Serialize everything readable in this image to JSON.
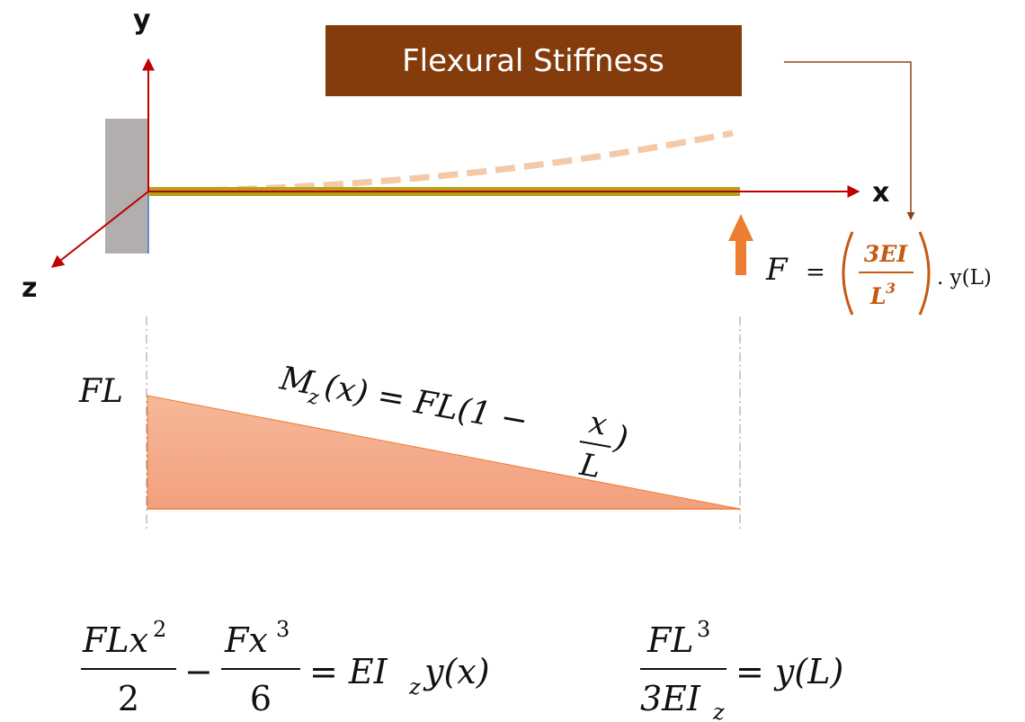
{
  "labels": {
    "y_axis": "y",
    "x_axis": "x",
    "z_axis": "z",
    "banner": "Flexural Stiffness"
  },
  "force_formula": {
    "lhs": "F",
    "eq": "=",
    "numerator": "3EI",
    "denominator_base": "L",
    "denominator_exp": "3",
    "tail": ". y(L)"
  },
  "moment": {
    "fl_label": "FL",
    "expr_start": "M",
    "expr_sub": "z",
    "expr_mid": "(x) = FL(1 −",
    "frac_num": "x",
    "frac_den": "L",
    "expr_end": ")"
  },
  "eq_left": {
    "t1_num": "FLx",
    "t1_num_exp": "2",
    "t1_den": "2",
    "minus": "−",
    "t2_num": "Fx",
    "t2_num_exp": "3",
    "t2_den": "6",
    "rhs_a": "= EI",
    "rhs_sub": "z",
    "rhs_b": "y(x)"
  },
  "eq_right": {
    "num": "FL",
    "num_exp": "3",
    "den": "3EI",
    "den_sub": "z",
    "rhs": "= y(L)"
  },
  "colors": {
    "banner_bg": "#843c0c",
    "axis_red": "#c00000",
    "wall_gray": "#b3aeae",
    "beam_olive": "#b4a21a",
    "deflection_dash": "#f4c9a8",
    "force_arrow": "#ed7d31",
    "moment_fill": "#f4a583",
    "leader_brown": "#8b4513"
  }
}
